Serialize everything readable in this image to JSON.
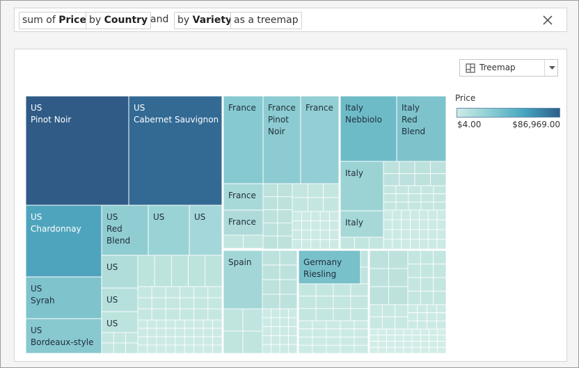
{
  "query": {
    "pill_1_prefix": "sum of",
    "pill_1_field": "Price",
    "pill_2_prefix": "by",
    "pill_2_field": "Country",
    "conjunction": "and",
    "pill_3_prefix": "by",
    "pill_3_field": "Variety",
    "pill_4": "as a treemap"
  },
  "viz_selector": {
    "label": "Treemap",
    "icon": "treemap-icon"
  },
  "legend": {
    "title": "Price",
    "min": "$4.00",
    "max": "$86,969.00",
    "colors": [
      "#cdebe5",
      "#86cbd1",
      "#47a6bf",
      "#2c5f8a"
    ]
  },
  "chart_data": {
    "type": "treemap",
    "measure": "sum of Price",
    "dimensions": [
      "Country",
      "Variety"
    ],
    "color_range": [
      "$4.00",
      "$86,969.00"
    ],
    "labeled_cells": [
      {
        "country": "US",
        "variety": "Pinot Noir",
        "lines": [
          "US",
          "Pinot Noir"
        ]
      },
      {
        "country": "US",
        "variety": "Cabernet Sauvignon",
        "lines": [
          "US",
          "Cabernet Sauvignon"
        ]
      },
      {
        "country": "US",
        "variety": "Chardonnay",
        "lines": [
          "US",
          "Chardonnay"
        ]
      },
      {
        "country": "US",
        "variety": "Red Blend",
        "lines": [
          "US",
          "Red",
          "Blend"
        ]
      },
      {
        "country": "US",
        "variety": "",
        "lines": [
          "US"
        ]
      },
      {
        "country": "US",
        "variety": "",
        "lines": [
          "US"
        ]
      },
      {
        "country": "US",
        "variety": "Syrah",
        "lines": [
          "US",
          "Syrah"
        ]
      },
      {
        "country": "US",
        "variety": "Bordeaux-style",
        "lines": [
          "US",
          "Bordeaux-style"
        ]
      },
      {
        "country": "US",
        "variety": "",
        "lines": [
          "US"
        ]
      },
      {
        "country": "US",
        "variety": "",
        "lines": [
          "US"
        ]
      },
      {
        "country": "US",
        "variety": "",
        "lines": [
          "US"
        ]
      },
      {
        "country": "France",
        "variety": "",
        "lines": [
          "France"
        ]
      },
      {
        "country": "France",
        "variety": "Pinot Noir",
        "lines": [
          "France",
          "Pinot",
          "Noir"
        ]
      },
      {
        "country": "France",
        "variety": "",
        "lines": [
          "France"
        ]
      },
      {
        "country": "France",
        "variety": "",
        "lines": [
          "France"
        ]
      },
      {
        "country": "France",
        "variety": "",
        "lines": [
          "France"
        ]
      },
      {
        "country": "Italy",
        "variety": "Nebbiolo",
        "lines": [
          "Italy",
          "Nebbiolo"
        ]
      },
      {
        "country": "Italy",
        "variety": "Red Blend",
        "lines": [
          "Italy",
          "Red",
          "Blend"
        ]
      },
      {
        "country": "Italy",
        "variety": "",
        "lines": [
          "Italy"
        ]
      },
      {
        "country": "Italy",
        "variety": "",
        "lines": [
          "Italy"
        ]
      },
      {
        "country": "Spain",
        "variety": "",
        "lines": [
          "Spain"
        ]
      },
      {
        "country": "Germany",
        "variety": "Riesling",
        "lines": [
          "Germany",
          "Riesling"
        ]
      }
    ]
  }
}
